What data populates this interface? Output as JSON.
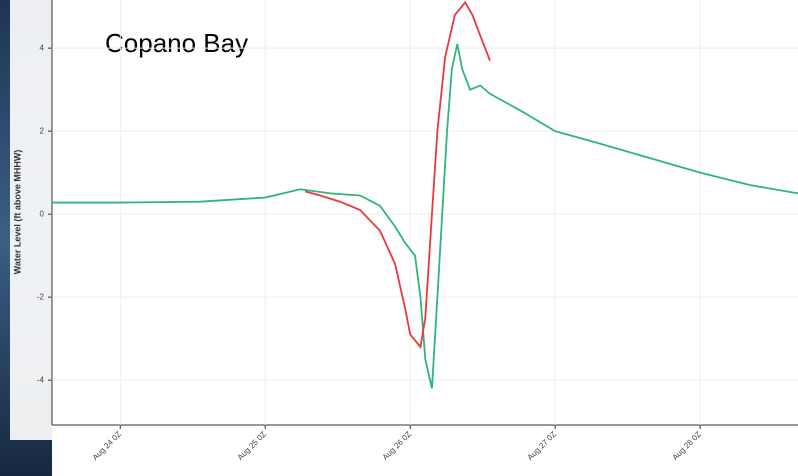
{
  "chart_data": {
    "type": "line",
    "annotation": "Copano Bay",
    "ylabel": "Water Level (ft above MHHW)",
    "xlim": [
      -11.3,
      112.2
    ],
    "ylim": [
      -5.08,
      5.16
    ],
    "xticks": [
      {
        "value": 0,
        "label": "Aug 24 0Z"
      },
      {
        "value": 24,
        "label": "Aug 25 0Z"
      },
      {
        "value": 48,
        "label": "Aug 26 0Z"
      },
      {
        "value": 72,
        "label": "Aug 27 0Z"
      },
      {
        "value": 96,
        "label": "Aug 28 0Z"
      }
    ],
    "yticks": [
      -4,
      -2,
      0,
      2,
      4
    ],
    "grid": true,
    "series": [
      {
        "color": "#2eb67d",
        "x": [
          -11.3,
          0,
          13.2,
          24,
          29.8,
          34.8,
          39.7,
          43.0,
          45.5,
          47.2,
          48.8,
          49.7,
          50.5,
          51.6,
          52.5,
          53.3,
          54.1,
          54.9,
          55.8,
          56.6,
          57.9,
          59.6,
          61.2,
          66.2,
          72,
          79.4,
          87.7,
          96,
          104.3,
          112.2
        ],
        "values": [
          0.28,
          0.28,
          0.3,
          0.4,
          0.6,
          0.5,
          0.45,
          0.2,
          -0.3,
          -0.7,
          -1.0,
          -2,
          -3.5,
          -4.2,
          -2,
          0,
          2,
          3.5,
          4.1,
          3.5,
          3.0,
          3.1,
          2.9,
          2.5,
          2.0,
          1.7,
          1.35,
          1.0,
          0.7,
          0.5
        ]
      },
      {
        "color": "#e8393f",
        "x": [
          30.6,
          33.1,
          36.4,
          39.7,
          43.0,
          45.5,
          47.2,
          48.0,
          49.7,
          50.5,
          51.6,
          52.5,
          53.8,
          55.4,
          57.1,
          58.3,
          59.6,
          61.2
        ],
        "values": [
          0.55,
          0.45,
          0.3,
          0.1,
          -0.4,
          -1.2,
          -2.3,
          -2.9,
          -3.2,
          -2.5,
          0,
          2,
          3.8,
          4.8,
          5.1,
          4.8,
          4.3,
          3.7
        ]
      }
    ]
  }
}
